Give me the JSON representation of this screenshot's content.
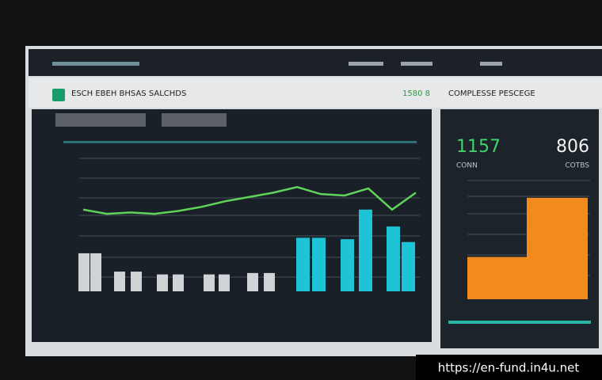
{
  "panel_title": "ESCH EBEH BHSAS SALCHDS",
  "panel_value": "1580 8",
  "side_title": "COMPLESSE PESCEGE",
  "kpis": [
    {
      "value": "1157",
      "label": "CONN"
    },
    {
      "value": "806",
      "label": "COTBS"
    }
  ],
  "chart_data": [
    {
      "type": "bar",
      "ylim": [
        0,
        100
      ],
      "series": [
        {
          "color": "#cfd3d6",
          "values": [
            27,
            27,
            14,
            14,
            12,
            12,
            12,
            12,
            13,
            13
          ]
        },
        {
          "color": "#1ec4d6",
          "values": [
            38,
            38,
            37,
            58,
            46,
            35
          ]
        },
        {
          "type": "line",
          "color": "#5fd35a",
          "values": [
            58,
            55,
            56,
            55,
            57,
            60,
            64,
            67,
            70,
            74,
            69,
            68,
            73,
            58,
            70
          ]
        }
      ]
    },
    {
      "type": "bar",
      "ylim": [
        0,
        100
      ],
      "series": [
        {
          "color": "#f28a1e",
          "values": [
            30,
            72
          ]
        }
      ]
    }
  ],
  "watermark": "https://en-fund.in4u.net"
}
